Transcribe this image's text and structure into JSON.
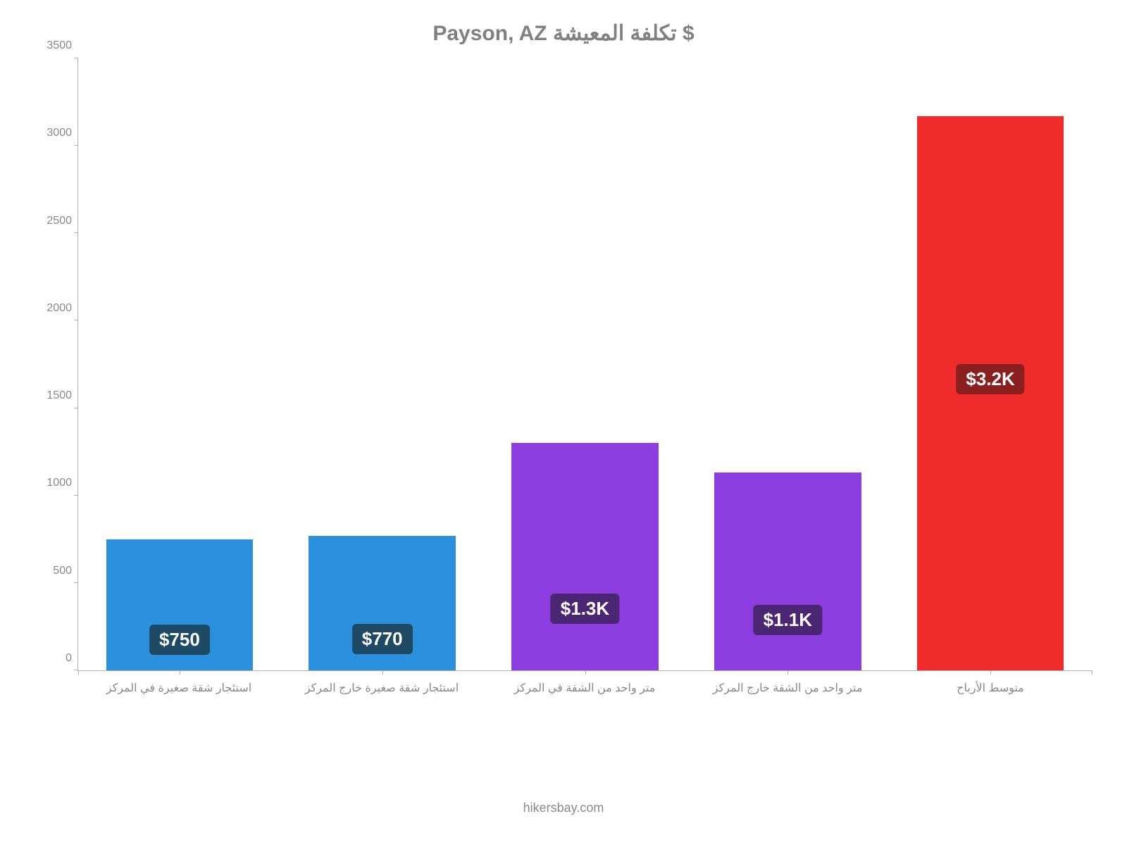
{
  "title": "Payson, AZ تكلفة المعيشة $",
  "footer": "hikersbay.com",
  "chart": {
    "type": "bar",
    "y_axis": {
      "min": 0,
      "max": 3500,
      "step": 500,
      "ticks": [
        0,
        500,
        1000,
        1500,
        2000,
        2500,
        3000,
        3500
      ],
      "color": "#888888",
      "fontsize": 16
    },
    "x_labels_color": "#888888",
    "x_labels_fontsize": 16,
    "bar_width_pct": 14.5,
    "group_width_pct": 20,
    "data_label_fontsize": 26,
    "bars": [
      {
        "category": "استئجار شقة صغيرة في المركز",
        "value": 750,
        "display_label": "$750",
        "color": "#2b90de",
        "label_bg": "#1e4a66"
      },
      {
        "category": "استئجار شقة صغيرة خارج المركز",
        "value": 770,
        "display_label": "$770",
        "color": "#2b90de",
        "label_bg": "#1e4a66"
      },
      {
        "category": "متر واحد من الشقة في المركز",
        "value": 1300,
        "display_label": "$1.3K",
        "color": "#8c3de0",
        "label_bg": "#4a2673"
      },
      {
        "category": "متر واحد من الشقة خارج المركز",
        "value": 1130,
        "display_label": "$1.1K",
        "color": "#8c3de0",
        "label_bg": "#4a2673"
      },
      {
        "category": "متوسط الأرباح",
        "value": 3170,
        "display_label": "$3.2K",
        "color": "#ef2b2b",
        "label_bg": "#8a1f1f"
      }
    ],
    "background_color": "#ffffff",
    "axis_line_color": "#b0b0b0",
    "title_color": "#808080",
    "title_fontsize": 30,
    "footer_color": "#8a8a8a",
    "footer_fontsize": 18
  }
}
